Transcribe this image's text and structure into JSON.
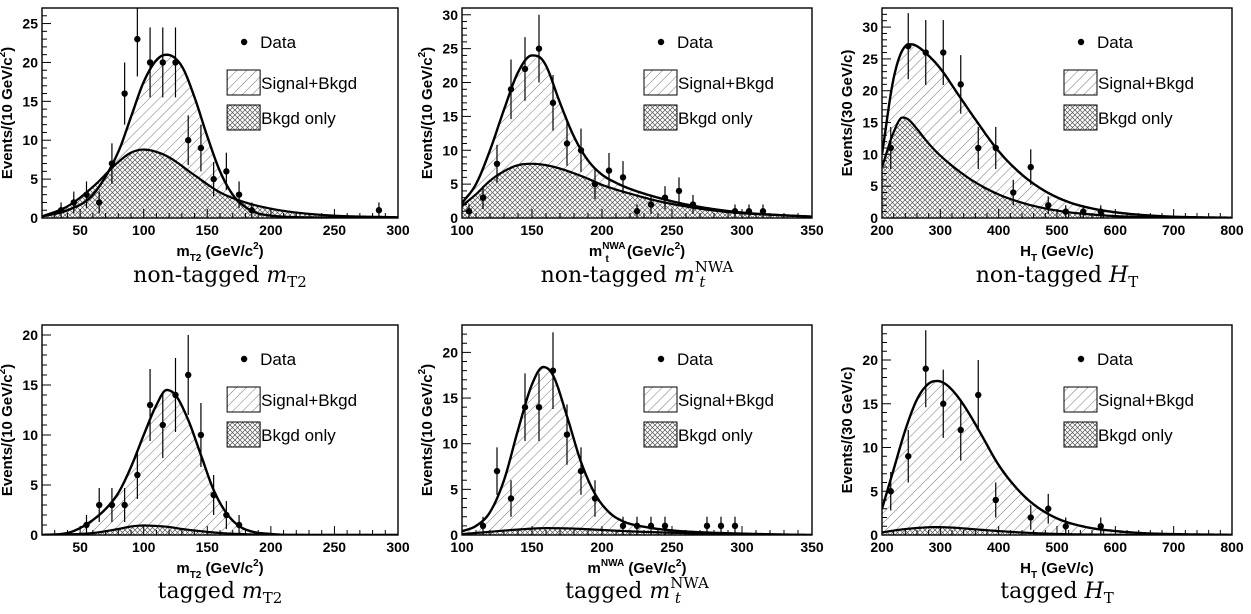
{
  "legend_labels": {
    "data": "Data",
    "signal": "Signal+Bkgd",
    "bkgd": "Bkgd only"
  },
  "chart_data": [
    {
      "type": "line",
      "caption": "non-tagged m_T2",
      "xlabel": "m_T2 (GeV/c^2)",
      "ylabel": "Events/(10 GeV/c^2)",
      "xlim": [
        20,
        300
      ],
      "ylim": [
        0,
        27
      ],
      "xticks": [
        50,
        100,
        150,
        200,
        250,
        300
      ],
      "yticks": [
        0,
        5,
        10,
        15,
        20,
        25
      ],
      "legend_position": "top-right",
      "data": [
        {
          "x": 35,
          "y": 1,
          "err": 1
        },
        {
          "x": 45,
          "y": 2,
          "err": 1.4
        },
        {
          "x": 55,
          "y": 3,
          "err": 1.7
        },
        {
          "x": 65,
          "y": 2,
          "err": 1.4
        },
        {
          "x": 75,
          "y": 7,
          "err": 2.6
        },
        {
          "x": 85,
          "y": 16,
          "err": 4
        },
        {
          "x": 95,
          "y": 23,
          "err": 4.8
        },
        {
          "x": 105,
          "y": 20,
          "err": 4.5
        },
        {
          "x": 115,
          "y": 20,
          "err": 4.5
        },
        {
          "x": 125,
          "y": 20,
          "err": 4.5
        },
        {
          "x": 135,
          "y": 10,
          "err": 3.2
        },
        {
          "x": 145,
          "y": 9,
          "err": 3
        },
        {
          "x": 155,
          "y": 5,
          "err": 2.2
        },
        {
          "x": 165,
          "y": 6,
          "err": 2.4
        },
        {
          "x": 175,
          "y": 3,
          "err": 1.7
        },
        {
          "x": 185,
          "y": 1,
          "err": 1
        },
        {
          "x": 285,
          "y": 1,
          "err": 1
        }
      ],
      "signal_bkgd": {
        "x": [
          20,
          40,
          60,
          80,
          90,
          100,
          110,
          118,
          130,
          140,
          150,
          160,
          170,
          180,
          190,
          200,
          220,
          250,
          300
        ],
        "y": [
          0.2,
          1,
          3,
          8.5,
          13,
          17.5,
          20.3,
          21,
          19.5,
          15.5,
          10.5,
          6,
          3,
          1.4,
          0.6,
          0.3,
          0.1,
          0.05,
          0
        ]
      },
      "bkgd_only": {
        "x": [
          20,
          40,
          60,
          80,
          90,
          100,
          110,
          120,
          140,
          160,
          180,
          200,
          220,
          250,
          300
        ],
        "y": [
          0.2,
          1.5,
          4,
          7.2,
          8.4,
          8.8,
          8.5,
          7.8,
          5.5,
          3.3,
          2,
          1.2,
          0.7,
          0.3,
          0.1
        ]
      }
    },
    {
      "type": "line",
      "caption": "non-tagged m_t^NWA",
      "xlabel": "m_t^NWA (GeV/c^2)",
      "ylabel": "Events/(10 GeV/c^2)",
      "xlim": [
        100,
        350
      ],
      "ylim": [
        0,
        31
      ],
      "xticks": [
        100,
        150,
        200,
        250,
        300,
        350
      ],
      "yticks": [
        0,
        5,
        10,
        15,
        20,
        25,
        30
      ],
      "legend_position": "top-right",
      "data": [
        {
          "x": 105,
          "y": 1,
          "err": 1
        },
        {
          "x": 115,
          "y": 3,
          "err": 1.7
        },
        {
          "x": 125,
          "y": 8,
          "err": 2.8
        },
        {
          "x": 135,
          "y": 19,
          "err": 4.4
        },
        {
          "x": 145,
          "y": 22,
          "err": 4.7
        },
        {
          "x": 155,
          "y": 25,
          "err": 5
        },
        {
          "x": 165,
          "y": 17,
          "err": 4.1
        },
        {
          "x": 175,
          "y": 11,
          "err": 3.3
        },
        {
          "x": 185,
          "y": 10,
          "err": 3.2
        },
        {
          "x": 195,
          "y": 5,
          "err": 2.2
        },
        {
          "x": 205,
          "y": 7,
          "err": 2.6
        },
        {
          "x": 215,
          "y": 6,
          "err": 2.4
        },
        {
          "x": 225,
          "y": 1,
          "err": 1
        },
        {
          "x": 235,
          "y": 2,
          "err": 1.4
        },
        {
          "x": 245,
          "y": 3,
          "err": 1.7
        },
        {
          "x": 255,
          "y": 4,
          "err": 2
        },
        {
          "x": 265,
          "y": 2,
          "err": 1.4
        },
        {
          "x": 295,
          "y": 1,
          "err": 1
        },
        {
          "x": 305,
          "y": 1,
          "err": 1
        },
        {
          "x": 315,
          "y": 1,
          "err": 1
        }
      ],
      "signal_bkgd": {
        "x": [
          100,
          110,
          120,
          130,
          140,
          150,
          155,
          160,
          170,
          180,
          190,
          200,
          210,
          220,
          240,
          260,
          280,
          300,
          320,
          350
        ],
        "y": [
          2.2,
          5,
          10,
          16,
          21.5,
          24,
          23.8,
          22.5,
          17,
          12,
          8.5,
          6.4,
          5.2,
          4.3,
          3,
          2,
          1.3,
          0.8,
          0.5,
          0.2
        ]
      },
      "bkgd_only": {
        "x": [
          100,
          110,
          120,
          130,
          140,
          150,
          160,
          170,
          180,
          190,
          200,
          210,
          220,
          240,
          260,
          280,
          300,
          320,
          350
        ],
        "y": [
          1.8,
          3.5,
          5.5,
          6.9,
          7.8,
          8,
          7.8,
          7.3,
          6.6,
          5.8,
          4.9,
          4.2,
          3.6,
          2.5,
          1.7,
          1.1,
          0.7,
          0.5,
          0.2
        ]
      }
    },
    {
      "type": "line",
      "caption": "non-tagged H_T",
      "xlabel": "H_T (GeV/c)",
      "ylabel": "Events/(30 GeV/c)",
      "xlim": [
        200,
        800
      ],
      "ylim": [
        0,
        33
      ],
      "xticks": [
        200,
        300,
        400,
        500,
        600,
        700,
        800
      ],
      "yticks": [
        0,
        5,
        10,
        15,
        20,
        25,
        30
      ],
      "legend_position": "top-right",
      "data": [
        {
          "x": 215,
          "y": 11,
          "err": 3.3
        },
        {
          "x": 245,
          "y": 27,
          "err": 5.2
        },
        {
          "x": 275,
          "y": 26,
          "err": 5.1
        },
        {
          "x": 305,
          "y": 26,
          "err": 5.1
        },
        {
          "x": 335,
          "y": 21,
          "err": 4.6
        },
        {
          "x": 365,
          "y": 11,
          "err": 3.3
        },
        {
          "x": 395,
          "y": 11,
          "err": 3.3
        },
        {
          "x": 425,
          "y": 4,
          "err": 2
        },
        {
          "x": 455,
          "y": 8,
          "err": 2.8
        },
        {
          "x": 485,
          "y": 2,
          "err": 1.4
        },
        {
          "x": 515,
          "y": 1,
          "err": 1
        },
        {
          "x": 545,
          "y": 1,
          "err": 1
        },
        {
          "x": 575,
          "y": 1,
          "err": 1
        }
      ],
      "signal_bkgd": {
        "x": [
          200,
          220,
          240,
          250,
          260,
          280,
          300,
          330,
          360,
          400,
          440,
          480,
          520,
          560,
          600,
          650,
          700,
          750,
          800
        ],
        "y": [
          10,
          22,
          27,
          27.3,
          27,
          25.5,
          23.5,
          19.5,
          15.5,
          10.5,
          6.8,
          4.2,
          2.5,
          1.5,
          0.9,
          0.45,
          0.2,
          0.1,
          0.05
        ]
      },
      "bkgd_only": {
        "x": [
          200,
          220,
          235,
          245,
          260,
          280,
          300,
          330,
          360,
          400,
          440,
          480,
          520,
          560,
          600,
          650,
          700,
          800
        ],
        "y": [
          8,
          13.5,
          15.8,
          15.5,
          14,
          11.7,
          9.8,
          7.5,
          5.6,
          3.7,
          2.4,
          1.5,
          0.9,
          0.55,
          0.3,
          0.15,
          0.08,
          0.02
        ]
      }
    },
    {
      "type": "line",
      "caption": "tagged m_T2",
      "xlabel": "m_T2 (GeV/c^2)",
      "ylabel": "Events/(10 GeV/c^2)",
      "xlim": [
        20,
        300
      ],
      "ylim": [
        0,
        21
      ],
      "xticks": [
        50,
        100,
        150,
        200,
        250,
        300
      ],
      "yticks": [
        0,
        5,
        10,
        15,
        20
      ],
      "legend_position": "top-right",
      "data": [
        {
          "x": 55,
          "y": 1,
          "err": 1
        },
        {
          "x": 65,
          "y": 3,
          "err": 1.7
        },
        {
          "x": 75,
          "y": 3,
          "err": 1.7
        },
        {
          "x": 85,
          "y": 3,
          "err": 1.7
        },
        {
          "x": 95,
          "y": 6,
          "err": 2.4
        },
        {
          "x": 105,
          "y": 13,
          "err": 3.6
        },
        {
          "x": 115,
          "y": 11,
          "err": 3.3
        },
        {
          "x": 125,
          "y": 14,
          "err": 3.7
        },
        {
          "x": 135,
          "y": 16,
          "err": 4
        },
        {
          "x": 145,
          "y": 10,
          "err": 3.2
        },
        {
          "x": 155,
          "y": 4,
          "err": 2
        },
        {
          "x": 165,
          "y": 2,
          "err": 1.4
        },
        {
          "x": 175,
          "y": 1,
          "err": 1
        }
      ],
      "signal_bkgd": {
        "x": [
          20,
          40,
          50,
          60,
          70,
          80,
          90,
          100,
          110,
          118,
          125,
          135,
          145,
          155,
          165,
          175,
          185,
          200,
          220,
          300
        ],
        "y": [
          0,
          0.2,
          0.7,
          1.5,
          2.6,
          4.2,
          6.8,
          10,
          13,
          14.5,
          14,
          11.5,
          8,
          4.5,
          2.2,
          0.9,
          0.35,
          0.1,
          0,
          0
        ]
      },
      "bkgd_only": {
        "x": [
          20,
          60,
          80,
          90,
          100,
          110,
          120,
          130,
          140,
          160,
          180,
          200,
          300
        ],
        "y": [
          0,
          0.2,
          0.6,
          0.85,
          0.95,
          0.9,
          0.8,
          0.6,
          0.45,
          0.2,
          0.08,
          0.02,
          0
        ]
      }
    },
    {
      "type": "line",
      "caption": "tagged m_t^NWA",
      "xlabel": "m^NWA (GeV/c^2)",
      "ylabel": "Events/(10 GeV/c^2)",
      "xlim": [
        100,
        350
      ],
      "ylim": [
        0,
        23
      ],
      "xticks": [
        100,
        150,
        200,
        250,
        300,
        350
      ],
      "yticks": [
        0,
        5,
        10,
        15,
        20
      ],
      "legend_position": "top-right",
      "data": [
        {
          "x": 115,
          "y": 1,
          "err": 1
        },
        {
          "x": 125,
          "y": 7,
          "err": 2.6
        },
        {
          "x": 135,
          "y": 4,
          "err": 2
        },
        {
          "x": 145,
          "y": 14,
          "err": 3.7
        },
        {
          "x": 155,
          "y": 14,
          "err": 3.7
        },
        {
          "x": 165,
          "y": 18,
          "err": 4.2
        },
        {
          "x": 175,
          "y": 11,
          "err": 3.3
        },
        {
          "x": 185,
          "y": 7,
          "err": 2.6
        },
        {
          "x": 195,
          "y": 4,
          "err": 2
        },
        {
          "x": 215,
          "y": 1,
          "err": 1
        },
        {
          "x": 225,
          "y": 1,
          "err": 1
        },
        {
          "x": 235,
          "y": 1,
          "err": 1
        },
        {
          "x": 245,
          "y": 1,
          "err": 1
        },
        {
          "x": 275,
          "y": 1,
          "err": 1
        },
        {
          "x": 285,
          "y": 1,
          "err": 1
        },
        {
          "x": 295,
          "y": 1,
          "err": 1
        }
      ],
      "signal_bkgd": {
        "x": [
          100,
          110,
          120,
          130,
          140,
          150,
          158,
          165,
          175,
          185,
          195,
          205,
          215,
          230,
          250,
          270,
          300,
          330,
          350
        ],
        "y": [
          0.4,
          1,
          2.5,
          6,
          11.5,
          16.5,
          18.4,
          17.5,
          13,
          8,
          4.5,
          2.5,
          1.5,
          0.9,
          0.5,
          0.3,
          0.15,
          0.05,
          0
        ]
      },
      "bkgd_only": {
        "x": [
          100,
          120,
          140,
          160,
          180,
          200,
          220,
          250,
          280,
          320,
          350
        ],
        "y": [
          0.1,
          0.35,
          0.6,
          0.75,
          0.7,
          0.55,
          0.4,
          0.25,
          0.12,
          0.05,
          0
        ]
      }
    },
    {
      "type": "line",
      "caption": "tagged H_T",
      "xlabel": "H_T (GeV/c)",
      "ylabel": "Events/(30 GeV/c)",
      "xlim": [
        200,
        800
      ],
      "ylim": [
        0,
        24
      ],
      "xticks": [
        200,
        300,
        400,
        500,
        600,
        700,
        800
      ],
      "yticks": [
        0,
        5,
        10,
        15,
        20
      ],
      "legend_position": "top-right",
      "data": [
        {
          "x": 215,
          "y": 5,
          "err": 2.2
        },
        {
          "x": 245,
          "y": 9,
          "err": 3
        },
        {
          "x": 275,
          "y": 19,
          "err": 4.4
        },
        {
          "x": 305,
          "y": 15,
          "err": 3.9
        },
        {
          "x": 335,
          "y": 12,
          "err": 3.5
        },
        {
          "x": 365,
          "y": 16,
          "err": 4
        },
        {
          "x": 395,
          "y": 4,
          "err": 2
        },
        {
          "x": 455,
          "y": 2,
          "err": 1.4
        },
        {
          "x": 485,
          "y": 3,
          "err": 1.7
        },
        {
          "x": 515,
          "y": 1,
          "err": 1
        },
        {
          "x": 575,
          "y": 1,
          "err": 1
        }
      ],
      "signal_bkgd": {
        "x": [
          200,
          220,
          240,
          260,
          280,
          295,
          310,
          330,
          350,
          370,
          400,
          430,
          460,
          500,
          550,
          600,
          650,
          700,
          800
        ],
        "y": [
          3,
          7.5,
          12,
          15.5,
          17.3,
          17.6,
          17.2,
          15.8,
          13.8,
          11.5,
          8,
          5.4,
          3.5,
          1.9,
          0.9,
          0.45,
          0.2,
          0.1,
          0.02
        ]
      },
      "bkgd_only": {
        "x": [
          200,
          230,
          260,
          290,
          320,
          350,
          400,
          450,
          500,
          600,
          800
        ],
        "y": [
          0.3,
          0.6,
          0.8,
          0.9,
          0.85,
          0.7,
          0.45,
          0.25,
          0.12,
          0.03,
          0
        ]
      }
    }
  ]
}
